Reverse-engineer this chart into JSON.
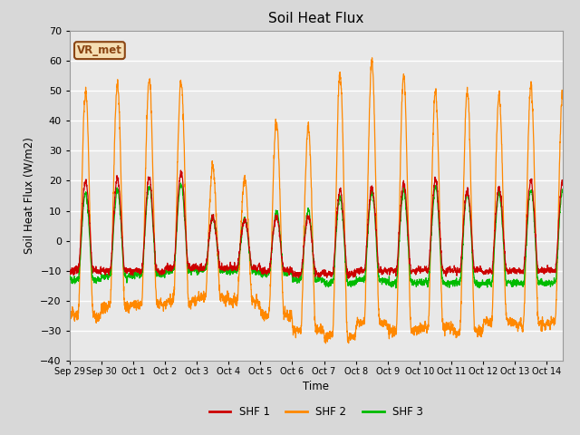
{
  "title": "Soil Heat Flux",
  "ylabel": "Soil Heat Flux (W/m2)",
  "xlabel": "Time",
  "ylim": [
    -40,
    70
  ],
  "legend_labels": [
    "SHF 1",
    "SHF 2",
    "SHF 3"
  ],
  "legend_colors": [
    "#cc0000",
    "#ff8800",
    "#00bb00"
  ],
  "annotation_text": "VR_met",
  "annotation_color": "#8B4513",
  "annotation_bg": "#f5deb3",
  "bg_color": "#d8d8d8",
  "plot_bg": "#e8e8e8",
  "grid_color": "white",
  "num_days": 15.5,
  "num_points": 3000,
  "x_tick_labels": [
    "Sep 29",
    "Sep 30",
    "Oct 1",
    "Oct 2",
    "Oct 3",
    "Oct 4",
    "Oct 5",
    "Oct 6",
    "Oct 7",
    "Oct 8",
    "Oct 9",
    "Oct 10",
    "Oct 11",
    "Oct 12",
    "Oct 13",
    "Oct 14"
  ],
  "yticks": [
    -40,
    -30,
    -20,
    -10,
    0,
    10,
    20,
    30,
    40,
    50,
    60,
    70
  ],
  "shf2_day_peaks": [
    50,
    52,
    54,
    53,
    25,
    21,
    40,
    38,
    56,
    60,
    55,
    50,
    50,
    49,
    52,
    50
  ],
  "shf1_day_peaks": [
    20,
    21,
    21,
    23,
    8,
    7,
    8,
    8,
    17,
    18,
    19,
    20,
    17,
    18,
    20,
    20
  ],
  "shf3_day_peaks": [
    16,
    17,
    18,
    19,
    8,
    7,
    10,
    10,
    15,
    16,
    17,
    18,
    16,
    16,
    17,
    17
  ],
  "shf2_day_troughs": [
    -25,
    -22,
    -21,
    -20,
    -19,
    -20,
    -25,
    -30,
    -32,
    -27,
    -30,
    -29,
    -30,
    -27,
    -28,
    -27
  ],
  "shf1_day_troughs": [
    -10,
    -10,
    -10,
    -9,
    -9,
    -9,
    -10,
    -11,
    -11,
    -10,
    -10,
    -10,
    -10,
    -10,
    -10,
    -10
  ],
  "shf3_day_troughs": [
    -13,
    -12,
    -11,
    -10,
    -10,
    -10,
    -11,
    -13,
    -14,
    -13,
    -14,
    -14,
    -14,
    -14,
    -14,
    -14
  ]
}
